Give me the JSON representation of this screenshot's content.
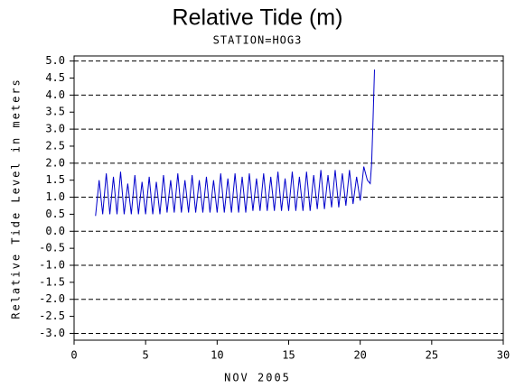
{
  "chart_data": {
    "type": "line",
    "title": "Relative Tide (m)",
    "subtitle": "STATION=HOG3",
    "x_label": "NOV 2005",
    "y_label": "Relative Tide Level in meters",
    "xlim": [
      0,
      30
    ],
    "xticks": [
      0,
      5,
      10,
      15,
      20,
      25,
      30
    ],
    "ylim": [
      -3.2,
      5.15
    ],
    "yticks": [
      {
        "value": -3,
        "label": "-3.0"
      },
      -2.5,
      {
        "value": -2,
        "label": "-2.0"
      },
      -1.5,
      {
        "value": -1,
        "label": "-1.0"
      },
      -0.5,
      {
        "value": 0,
        "label": "0.0"
      },
      0.5,
      {
        "value": 1,
        "label": "1.0"
      },
      1.5,
      {
        "value": 2,
        "label": "2.0"
      },
      2.5,
      {
        "value": 3,
        "label": "3.0"
      },
      3.5,
      {
        "value": 4,
        "label": "4.0"
      },
      4.5,
      {
        "value": 5,
        "label": "5.0"
      }
    ],
    "grid": true,
    "series": [
      {
        "color": "#0000cc",
        "x": [
          1.5,
          1.75,
          2,
          2.25,
          2.5,
          2.75,
          3,
          3.25,
          3.5,
          3.75,
          4,
          4.25,
          4.5,
          4.75,
          5,
          5.25,
          5.5,
          5.75,
          6,
          6.25,
          6.5,
          6.75,
          7,
          7.25,
          7.5,
          7.75,
          8,
          8.25,
          8.5,
          8.75,
          9,
          9.25,
          9.5,
          9.75,
          10,
          10.25,
          10.5,
          10.75,
          11,
          11.25,
          11.5,
          11.75,
          12,
          12.25,
          12.5,
          12.75,
          13,
          13.25,
          13.5,
          13.75,
          14,
          14.25,
          14.5,
          14.75,
          15,
          15.25,
          15.5,
          15.75,
          16,
          16.25,
          16.5,
          16.75,
          17,
          17.25,
          17.5,
          17.75,
          18,
          18.25,
          18.5,
          18.75,
          19,
          19.25,
          19.5,
          19.75,
          20,
          20.25,
          20.5,
          20.7,
          20.8,
          20.9,
          21
        ],
        "values": [
          0.45,
          1.5,
          0.5,
          1.7,
          0.5,
          1.6,
          0.5,
          1.75,
          0.5,
          1.4,
          0.5,
          1.65,
          0.5,
          1.45,
          0.5,
          1.6,
          0.5,
          1.45,
          0.5,
          1.65,
          0.55,
          1.5,
          0.55,
          1.7,
          0.55,
          1.5,
          0.55,
          1.65,
          0.55,
          1.5,
          0.55,
          1.6,
          0.55,
          1.5,
          0.55,
          1.7,
          0.55,
          1.55,
          0.55,
          1.7,
          0.55,
          1.6,
          0.55,
          1.7,
          0.6,
          1.55,
          0.6,
          1.7,
          0.6,
          1.6,
          0.6,
          1.75,
          0.6,
          1.55,
          0.6,
          1.75,
          0.6,
          1.6,
          0.6,
          1.75,
          0.6,
          1.65,
          0.65,
          1.8,
          0.65,
          1.65,
          0.7,
          1.8,
          0.7,
          1.7,
          0.75,
          1.8,
          0.8,
          1.6,
          0.9,
          1.9,
          1.5,
          1.4,
          2.0,
          3.3,
          4.75
        ]
      }
    ]
  }
}
